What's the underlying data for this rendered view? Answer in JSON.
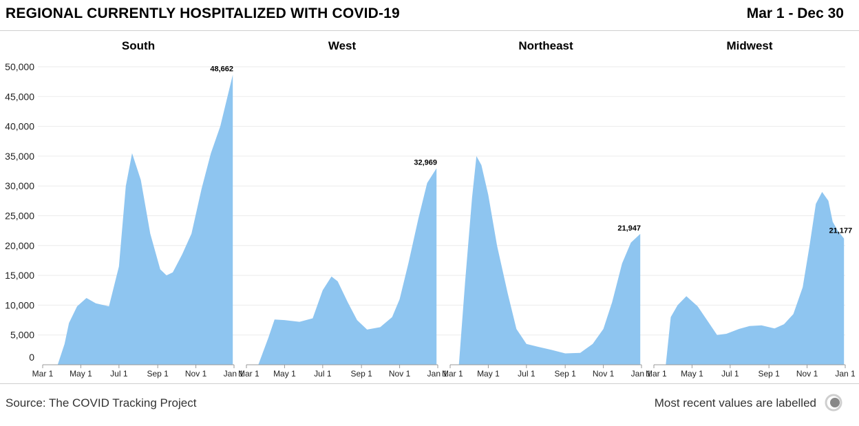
{
  "header": {
    "title": "REGIONAL CURRENTLY HOSPITALIZED WITH COVID-19",
    "date_range": "Mar 1 - Dec 30"
  },
  "footer": {
    "source": "Source: The COVID Tracking Project",
    "note": "Most recent values are labelled",
    "logo_icon": "covid-tracking-project-logo-icon"
  },
  "colors": {
    "area": "#8ec5f0",
    "grid": "#ebebeb",
    "text": "#000000",
    "axis": "#999999"
  },
  "chart_data": [
    {
      "type": "area",
      "region": "South",
      "ylim": [
        0,
        50000
      ],
      "y_ticks": [
        "0",
        "5,000",
        "10,000",
        "15,000",
        "20,000",
        "25,000",
        "30,000",
        "35,000",
        "40,000",
        "45,000",
        "50,000"
      ],
      "x_ticks": [
        "Mar 1",
        "May 1",
        "Jul 1",
        "Sep 1",
        "Nov 1",
        "Jan 1"
      ],
      "last_label": "48,662",
      "x_dates": [
        "2020-03-01",
        "2020-03-25",
        "2020-04-05",
        "2020-04-12",
        "2020-04-25",
        "2020-05-10",
        "2020-05-25",
        "2020-06-15",
        "2020-07-01",
        "2020-07-12",
        "2020-07-22",
        "2020-08-05",
        "2020-08-20",
        "2020-09-05",
        "2020-09-15",
        "2020-09-25",
        "2020-10-10",
        "2020-10-25",
        "2020-11-10",
        "2020-11-25",
        "2020-12-10",
        "2020-12-30"
      ],
      "values": [
        0,
        0,
        3500,
        7000,
        9800,
        11200,
        10300,
        9800,
        16500,
        30000,
        35500,
        31000,
        22000,
        16000,
        15000,
        15500,
        18500,
        22000,
        29500,
        35500,
        40000,
        48662
      ]
    },
    {
      "type": "area",
      "region": "West",
      "ylim": [
        0,
        50000
      ],
      "x_ticks": [
        "Mar 1",
        "May 1",
        "Jul 1",
        "Sep 1",
        "Nov 1",
        "Jan 1"
      ],
      "last_label": "32,969",
      "x_dates": [
        "2020-03-01",
        "2020-03-20",
        "2020-04-05",
        "2020-04-15",
        "2020-05-01",
        "2020-05-25",
        "2020-06-15",
        "2020-07-01",
        "2020-07-15",
        "2020-07-25",
        "2020-08-10",
        "2020-08-25",
        "2020-09-10",
        "2020-10-01",
        "2020-10-20",
        "2020-11-01",
        "2020-11-15",
        "2020-12-01",
        "2020-12-15",
        "2020-12-30"
      ],
      "values": [
        0,
        0,
        4500,
        7600,
        7500,
        7200,
        7800,
        12500,
        14800,
        14000,
        10500,
        7500,
        5900,
        6300,
        8000,
        11000,
        17000,
        24500,
        30500,
        32969
      ]
    },
    {
      "type": "area",
      "region": "Northeast",
      "ylim": [
        0,
        50000
      ],
      "x_ticks": [
        "Mar 1",
        "May 1",
        "Jul 1",
        "Sep 1",
        "Nov 1",
        "Jan 1"
      ],
      "last_label": "21,947",
      "x_dates": [
        "2020-03-01",
        "2020-03-15",
        "2020-03-25",
        "2020-04-05",
        "2020-04-12",
        "2020-04-20",
        "2020-05-01",
        "2020-05-15",
        "2020-06-01",
        "2020-06-15",
        "2020-07-01",
        "2020-07-20",
        "2020-08-10",
        "2020-09-01",
        "2020-09-25",
        "2020-10-15",
        "2020-11-01",
        "2020-11-15",
        "2020-12-01",
        "2020-12-15",
        "2020-12-30"
      ],
      "values": [
        0,
        0,
        14000,
        28000,
        35000,
        33500,
        28500,
        20000,
        12000,
        6000,
        3500,
        3000,
        2500,
        1900,
        2000,
        3500,
        6000,
        10500,
        17000,
        20500,
        21947
      ]
    },
    {
      "type": "area",
      "region": "Midwest",
      "ylim": [
        0,
        50000
      ],
      "x_ticks": [
        "Mar 1",
        "May 1",
        "Jul 1",
        "Sep 1",
        "Nov 1",
        "Jan 1"
      ],
      "last_label": "21,177",
      "x_dates": [
        "2020-03-01",
        "2020-03-20",
        "2020-03-28",
        "2020-04-08",
        "2020-04-22",
        "2020-05-10",
        "2020-05-25",
        "2020-06-10",
        "2020-06-25",
        "2020-07-15",
        "2020-08-01",
        "2020-08-20",
        "2020-09-10",
        "2020-09-25",
        "2020-10-10",
        "2020-10-25",
        "2020-11-05",
        "2020-11-15",
        "2020-11-25",
        "2020-12-05",
        "2020-12-12",
        "2020-12-20",
        "2020-12-30"
      ],
      "values": [
        0,
        0,
        8000,
        10000,
        11500,
        9800,
        7500,
        5000,
        5200,
        6000,
        6500,
        6600,
        6100,
        6800,
        8500,
        13000,
        20000,
        27000,
        29000,
        27500,
        24000,
        22500,
        21177
      ]
    }
  ]
}
